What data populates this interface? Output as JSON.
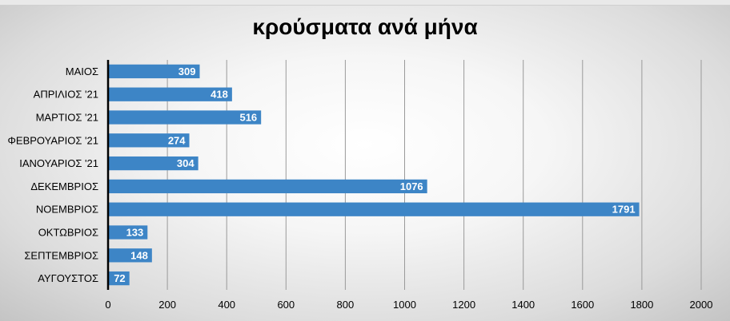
{
  "chart_data": {
    "type": "bar",
    "orientation": "horizontal",
    "title": "κρούσματα ανά μήνα",
    "categories": [
      "ΜΑΙΟΣ",
      "ΑΠΡΙΛΙΟΣ '21",
      "ΜΑΡΤΙΟΣ '21",
      "ΦΕΒΡΟΥΑΡΙΟΣ '21",
      "ΙΑΝΟΥΑΡΙΟΣ '21",
      "ΔΕΚΕΜΒΡΙΟΣ",
      "ΝΟΕΜΒΡΙΟΣ",
      "ΟΚΤΩΒΡΙΟΣ",
      "ΣΕΠΤΕΜΒΡΙΟΣ",
      "ΑΥΓΟΥΣΤΟΣ"
    ],
    "values": [
      309,
      418,
      516,
      274,
      304,
      1076,
      1791,
      133,
      148,
      72
    ],
    "xlim": [
      0,
      2000
    ],
    "xticks": [
      0,
      200,
      400,
      600,
      800,
      1000,
      1200,
      1400,
      1600,
      1800,
      2000
    ],
    "bar_color": "#3d85c6",
    "grid": true,
    "data_labels": true
  }
}
